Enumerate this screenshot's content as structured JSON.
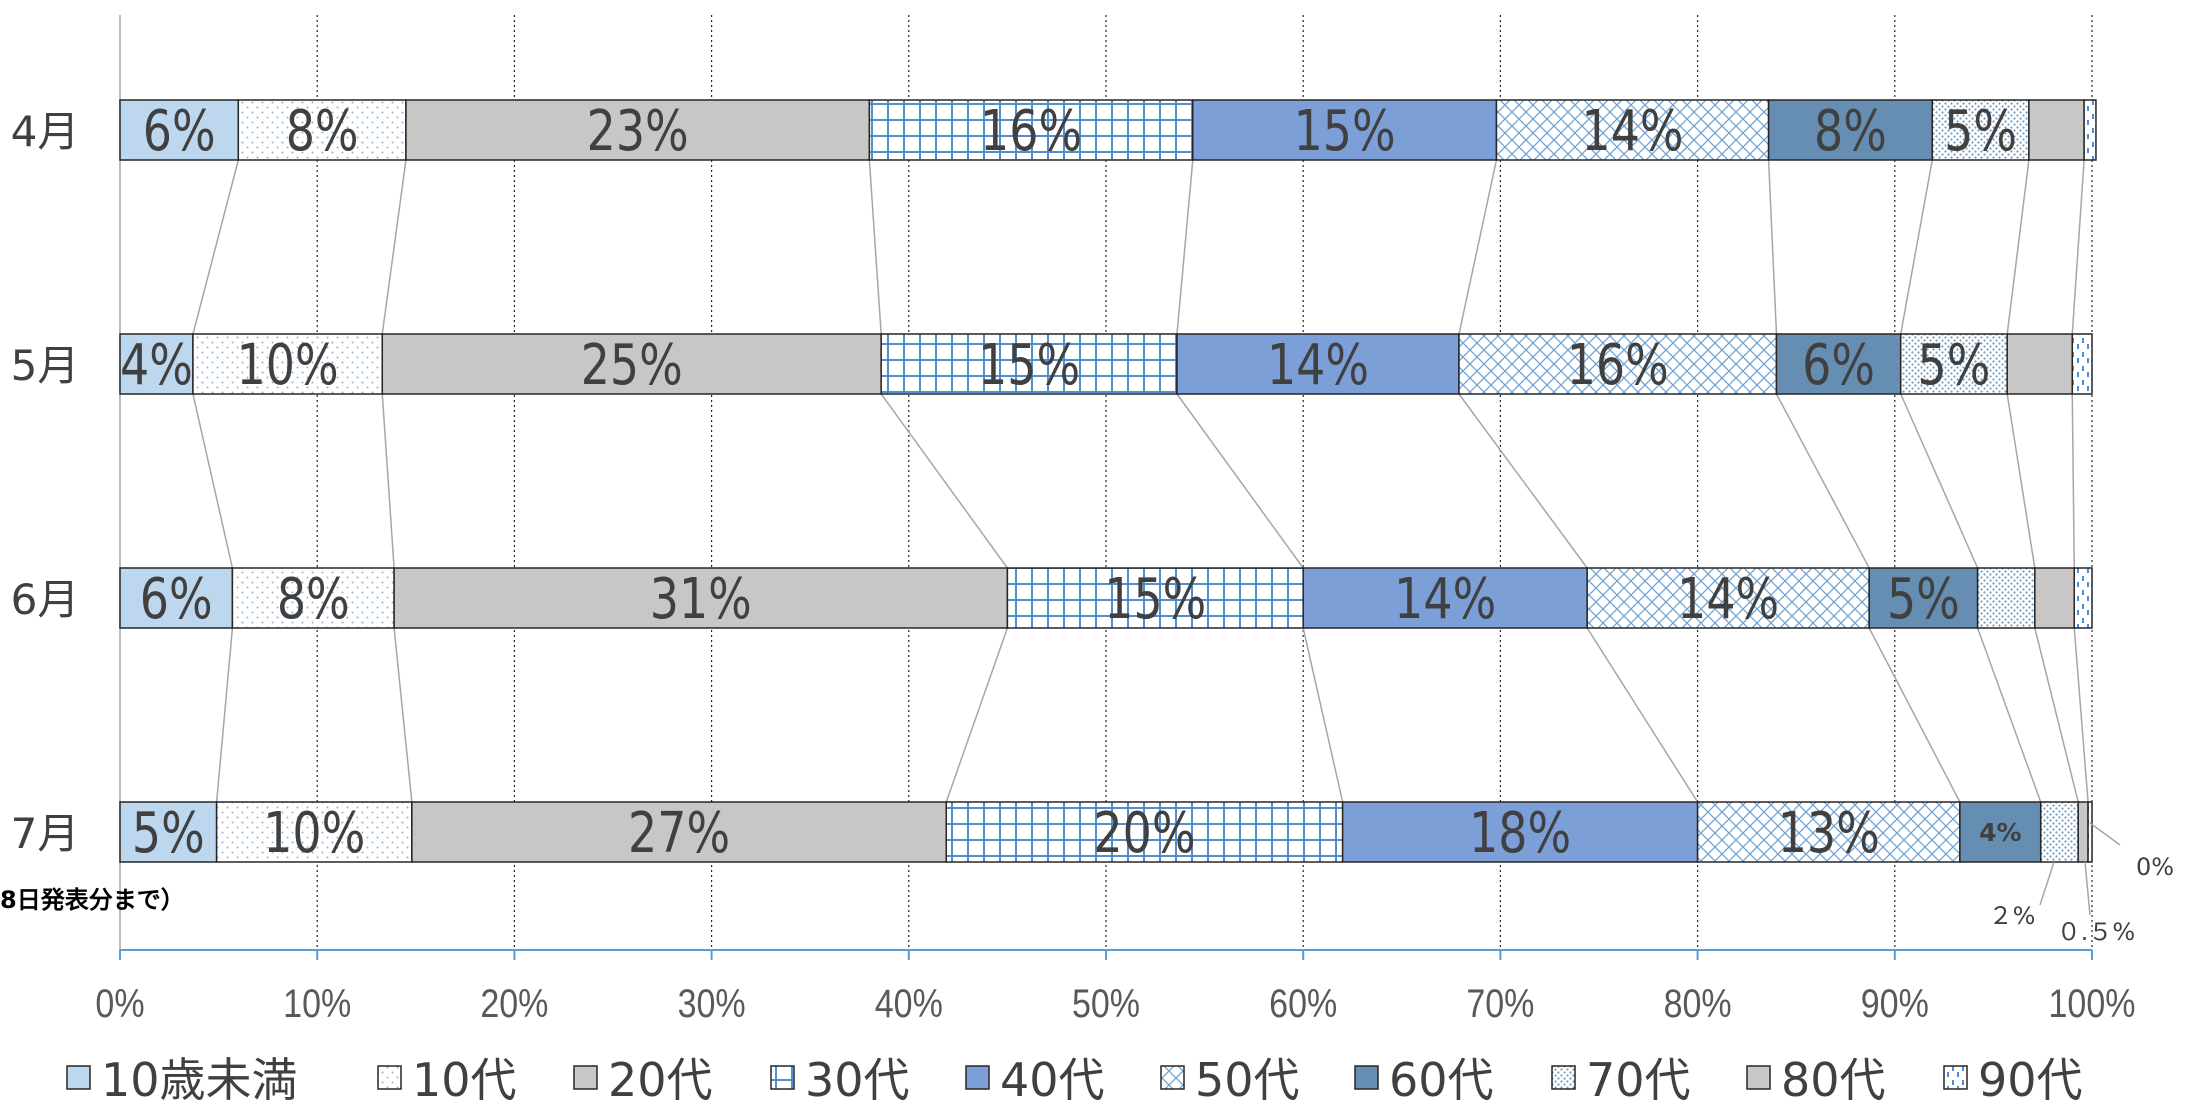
{
  "chart_data": {
    "type": "bar",
    "orientation": "horizontal",
    "stacked": "percent",
    "categories": [
      "4月",
      "5月",
      "6月",
      "7月"
    ],
    "series": [
      {
        "name": "10歳未満",
        "color": "#bdd7ee",
        "pattern": "solid",
        "values": [
          6,
          3.7,
          5.7,
          4.9
        ],
        "labels": [
          "6%",
          "4%",
          "6%",
          "5%"
        ]
      },
      {
        "name": "10代",
        "color": "#ffffff",
        "pattern": "dots",
        "values": [
          8.5,
          9.6,
          8.2,
          9.9
        ],
        "labels": [
          "8%",
          "10%",
          "8%",
          "10%"
        ]
      },
      {
        "name": "20代",
        "color": "#c9c6c6",
        "pattern": "solid",
        "values": [
          23.5,
          25.3,
          31.1,
          27.1
        ],
        "labels": [
          "23%",
          "25%",
          "31%",
          "27%"
        ]
      },
      {
        "name": "30代",
        "color": "#ffffff",
        "pattern": "grid",
        "values": [
          16.4,
          15,
          15,
          20.1
        ],
        "labels": [
          "16%",
          "15%",
          "15%",
          "20%"
        ]
      },
      {
        "name": "40代",
        "color": "#7c9fd8",
        "pattern": "solid",
        "values": [
          15.4,
          14.3,
          14.4,
          18
        ],
        "labels": [
          "15%",
          "14%",
          "14%",
          "18%"
        ]
      },
      {
        "name": "50代",
        "color": "#ffffff",
        "pattern": "diamond",
        "values": [
          13.8,
          16.1,
          14.3,
          13.3
        ],
        "labels": [
          "14%",
          "16%",
          "14%",
          "13%"
        ]
      },
      {
        "name": "60代",
        "color": "#668eb2",
        "pattern": "solid",
        "values": [
          8.3,
          6.3,
          5.5,
          4.1
        ],
        "labels": [
          "8%",
          "6%",
          "5%",
          "4%"
        ]
      },
      {
        "name": "70代",
        "color": "#ffffff",
        "pattern": "densedots",
        "values": [
          4.9,
          5.4,
          2.9,
          1.9
        ],
        "labels": [
          "5%",
          "5%",
          "",
          ""
        ]
      },
      {
        "name": "80代",
        "color": "#c9c6c6",
        "pattern": "solid",
        "values": [
          2.8,
          3.3,
          2,
          0.5
        ],
        "labels": [
          "",
          "",
          "",
          ""
        ]
      },
      {
        "name": "90代",
        "color": "#ffffff",
        "pattern": "dashes",
        "values": [
          0.6,
          1,
          0.9,
          0.2
        ],
        "labels": [
          "",
          "",
          "",
          ""
        ]
      }
    ],
    "xlim": [
      0,
      100
    ],
    "xticks": [
      "0%",
      "10%",
      "20%",
      "30%",
      "40%",
      "50%",
      "60%",
      "70%",
      "80%",
      "90%",
      "100%"
    ],
    "grid": "vertical-dotted",
    "legend": "bottom",
    "connector_lines": true,
    "annotations": [
      {
        "text": "0%",
        "series": "90代",
        "category": "7月"
      },
      {
        "text": "２%",
        "series": "70代",
        "category": "7月"
      },
      {
        "text": "０.５%",
        "series": "80代",
        "category": "7月"
      }
    ],
    "note": "8日発表分まで）"
  }
}
